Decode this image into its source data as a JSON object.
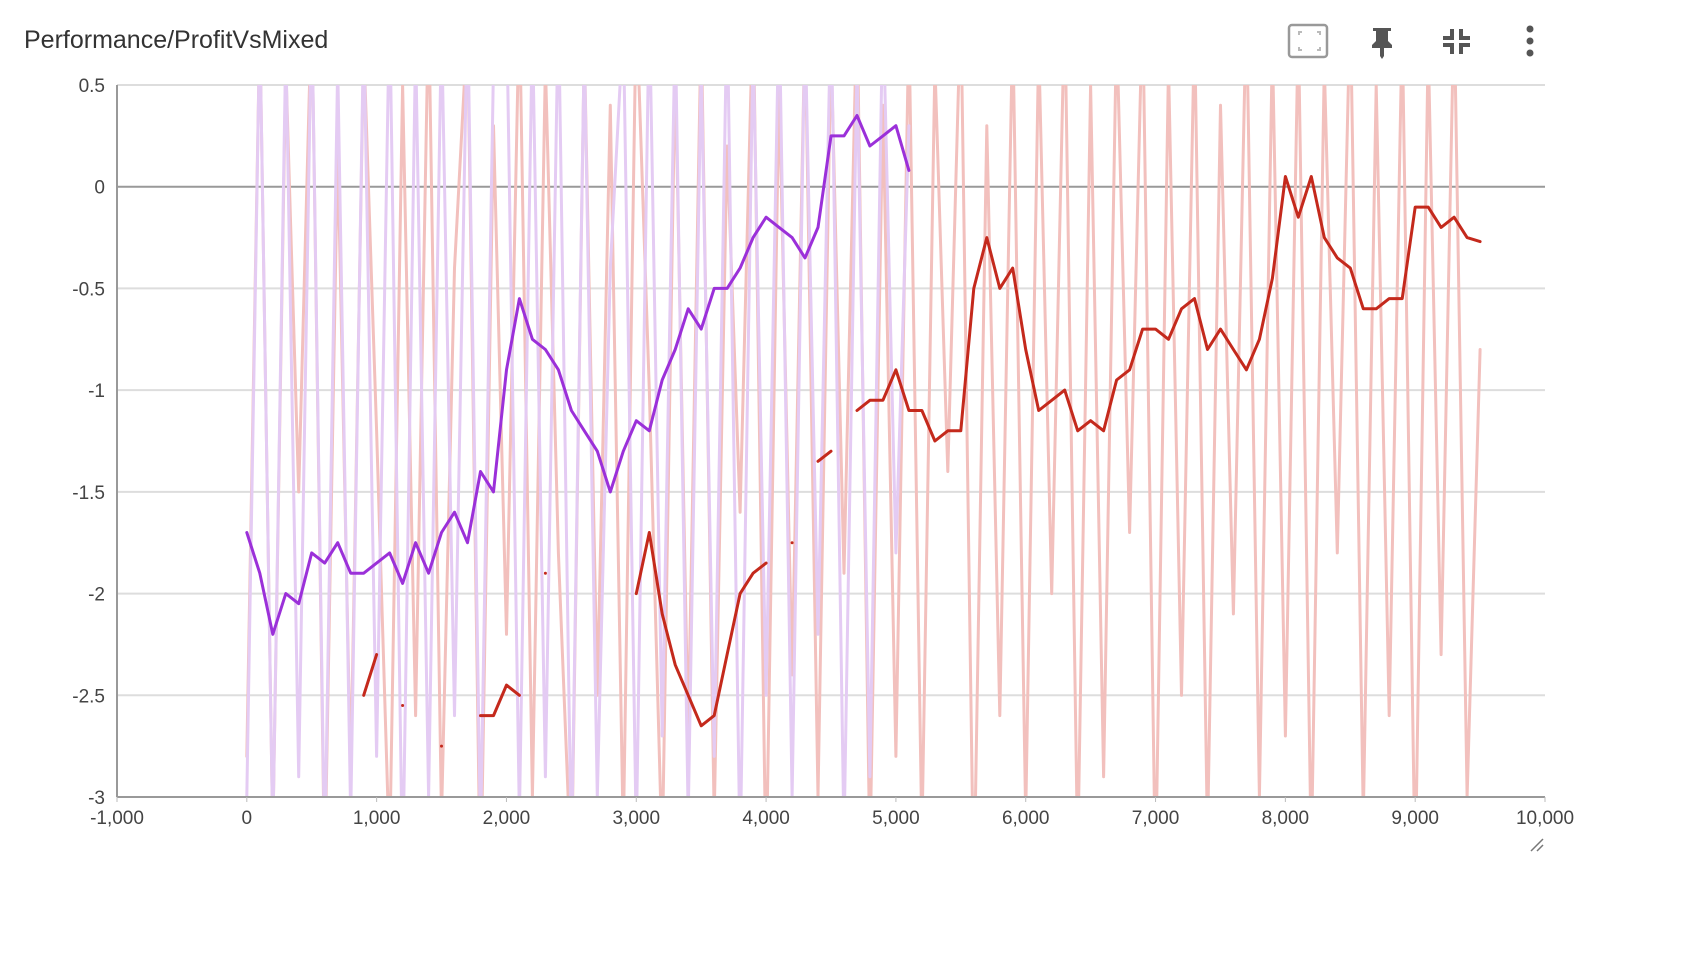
{
  "chart_data": {
    "type": "line",
    "title": "Performance/ProfitVsMixed",
    "x": [
      0,
      100,
      200,
      300,
      400,
      500,
      600,
      700,
      800,
      900,
      1000,
      1100,
      1200,
      1300,
      1400,
      1500,
      1600,
      1700,
      1800,
      1900,
      2000,
      2100,
      2200,
      2300,
      2400,
      2500,
      2600,
      2700,
      2800,
      2900,
      3000,
      3100,
      3200,
      3300,
      3400,
      3500,
      3600,
      3700,
      3800,
      3900,
      4000,
      4100,
      4200,
      4300,
      4400,
      4500,
      4600,
      4700,
      4800,
      4900,
      5000,
      5100,
      5200,
      5300,
      5400,
      5500,
      5600,
      5700,
      5800,
      5900,
      6000,
      6100,
      6200,
      6300,
      6400,
      6500,
      6600,
      6700,
      6800,
      6900,
      7000,
      7100,
      7200,
      7300,
      7400,
      7500,
      7600,
      7700,
      7800,
      7900,
      8000,
      8100,
      8200,
      8300,
      8400,
      8500,
      8600,
      8700,
      8800,
      8900,
      9000,
      9100,
      9200,
      9300,
      9400,
      9500
    ],
    "series": [
      {
        "color": "#f2c0bd",
        "values": [
          -2.8,
          0.8,
          -3.2,
          0.6,
          -1.5,
          0.9,
          -3.4,
          0.2,
          -2.9,
          0.7,
          -1.2,
          -3.3,
          0.5,
          -2.6,
          0.9,
          -3.1,
          -0.4,
          0.8,
          -3.5,
          0.3,
          -2.2,
          0.9,
          -3.0,
          0.6,
          -1.8,
          -3.4,
          0.7,
          -2.5,
          0.4,
          -3.2,
          0.9,
          -1.0,
          -3.3,
          0.6,
          -2.7,
          0.8,
          -3.1,
          0.2,
          -1.6,
          0.9,
          -3.4,
          0.5,
          -2.4,
          0.8,
          -3.0,
          0.7,
          -1.9,
          0.9,
          -3.3,
          0.4,
          -2.8,
          0.8,
          -3.2,
          0.6,
          -1.4,
          0.9,
          -3.5,
          0.3,
          -2.6,
          0.8,
          -3.1,
          0.7,
          -2.0,
          0.9,
          -3.3,
          0.5,
          -2.9,
          0.8,
          -1.7,
          0.9,
          -3.4,
          0.6,
          -2.5,
          0.8,
          -3.2,
          0.4,
          -2.1,
          0.9,
          -3.0,
          0.7,
          -2.7,
          0.8,
          -3.3,
          0.6,
          -1.8,
          0.9,
          -3.1,
          0.5,
          -2.6,
          0.8,
          -3.4,
          0.7,
          -2.3,
          0.9,
          -3.0,
          -0.8
        ]
      },
      {
        "color": "#e4cbf3",
        "values": [
          -3.0,
          0.8,
          -3.2,
          0.7,
          -2.9,
          0.9,
          -3.3,
          0.6,
          -3.1,
          0.8,
          -2.8,
          0.9,
          -3.4,
          0.7,
          -3.0,
          0.8,
          -2.6,
          0.9,
          -3.2,
          0.6,
          0.9,
          -3.1,
          0.8,
          -2.9,
          0.9,
          -3.3,
          0.7,
          -3.0,
          -0.4,
          0.8,
          -3.2,
          0.9,
          -2.7,
          0.8,
          -3.1,
          0.6,
          -2.8,
          0.9,
          -3.3,
          0.7,
          -2.5,
          0.9,
          -3.0,
          0.8,
          -2.2,
          0.9,
          -3.2,
          0.6,
          -2.9,
          0.9,
          -1.8,
          0.3,
          null,
          null,
          null,
          null,
          null,
          null,
          null,
          null,
          null,
          null,
          null,
          null,
          null,
          null,
          null,
          null,
          null,
          null,
          null,
          null,
          null,
          null,
          null,
          null,
          null,
          null,
          null,
          null,
          null,
          null,
          null,
          null,
          null,
          null,
          null,
          null,
          null,
          null,
          null,
          null,
          null,
          null,
          null,
          null
        ]
      },
      {
        "color": "#c4291c",
        "values": [
          null,
          null,
          null,
          null,
          null,
          null,
          null,
          null,
          null,
          -2.5,
          -2.3,
          null,
          -2.55,
          null,
          null,
          -2.75,
          null,
          null,
          -2.6,
          -2.6,
          -2.45,
          -2.5,
          null,
          -1.9,
          null,
          null,
          null,
          null,
          null,
          null,
          -2.0,
          -1.7,
          -2.1,
          -2.35,
          -2.5,
          -2.65,
          -2.6,
          -2.3,
          -2.0,
          -1.9,
          -1.85,
          null,
          -1.75,
          null,
          -1.35,
          -1.3,
          null,
          -1.1,
          -1.05,
          -1.05,
          -0.9,
          -1.1,
          -1.1,
          -1.25,
          -1.2,
          -1.2,
          -0.5,
          -0.25,
          -0.5,
          -0.4,
          -0.8,
          -1.1,
          -1.05,
          -1.0,
          -1.2,
          -1.15,
          -1.2,
          -0.95,
          -0.9,
          -0.7,
          -0.7,
          -0.75,
          -0.6,
          -0.55,
          -0.8,
          -0.7,
          -0.8,
          -0.9,
          -0.75,
          -0.45,
          0.05,
          -0.15,
          0.05,
          -0.25,
          -0.35,
          -0.4,
          -0.6,
          -0.6,
          -0.55,
          -0.55,
          -0.1,
          -0.1,
          -0.2,
          -0.15,
          -0.25,
          -0.27
        ]
      },
      {
        "color": "#9b30d9",
        "values": [
          -1.7,
          -1.9,
          -2.2,
          -2.0,
          -2.05,
          -1.8,
          -1.85,
          -1.75,
          -1.9,
          -1.9,
          -1.85,
          -1.8,
          -1.95,
          -1.75,
          -1.9,
          -1.7,
          -1.6,
          -1.75,
          -1.4,
          -1.5,
          -0.9,
          -0.55,
          -0.75,
          -0.8,
          -0.9,
          -1.1,
          -1.2,
          -1.3,
          -1.5,
          -1.3,
          -1.15,
          -1.2,
          -0.95,
          -0.8,
          -0.6,
          -0.7,
          -0.5,
          -0.5,
          -0.4,
          -0.25,
          -0.15,
          -0.2,
          -0.25,
          -0.35,
          -0.2,
          0.25,
          0.25,
          0.35,
          0.2,
          0.25,
          0.3,
          0.08,
          null,
          null,
          null,
          null,
          null,
          null,
          null,
          null,
          null,
          null,
          null,
          null,
          null,
          null,
          null,
          null,
          null,
          null,
          null,
          null,
          null,
          null,
          null,
          null,
          null,
          null,
          null,
          null,
          null,
          null,
          null,
          null,
          null,
          null,
          null,
          null,
          null,
          null,
          null,
          null,
          null,
          null,
          null,
          null
        ]
      }
    ],
    "xlim": [
      -1000,
      10000
    ],
    "xticks": [
      {
        "value": -1000,
        "label": "-1,000"
      },
      0,
      {
        "value": 1000,
        "label": "1,000"
      },
      {
        "value": 2000,
        "label": "2,000"
      },
      {
        "value": 3000,
        "label": "3,000"
      },
      {
        "value": 4000,
        "label": "4,000"
      },
      {
        "value": 5000,
        "label": "5,000"
      },
      {
        "value": 6000,
        "label": "6,000"
      },
      {
        "value": 7000,
        "label": "7,000"
      },
      {
        "value": 8000,
        "label": "8,000"
      },
      {
        "value": 9000,
        "label": "9,000"
      },
      {
        "value": 10000,
        "label": "10,000"
      }
    ],
    "ylim": [
      -3,
      0.5
    ],
    "yticks": [
      0.5,
      0,
      -0.5,
      -1,
      -1.5,
      -2,
      -2.5,
      -3
    ],
    "grid": true
  }
}
